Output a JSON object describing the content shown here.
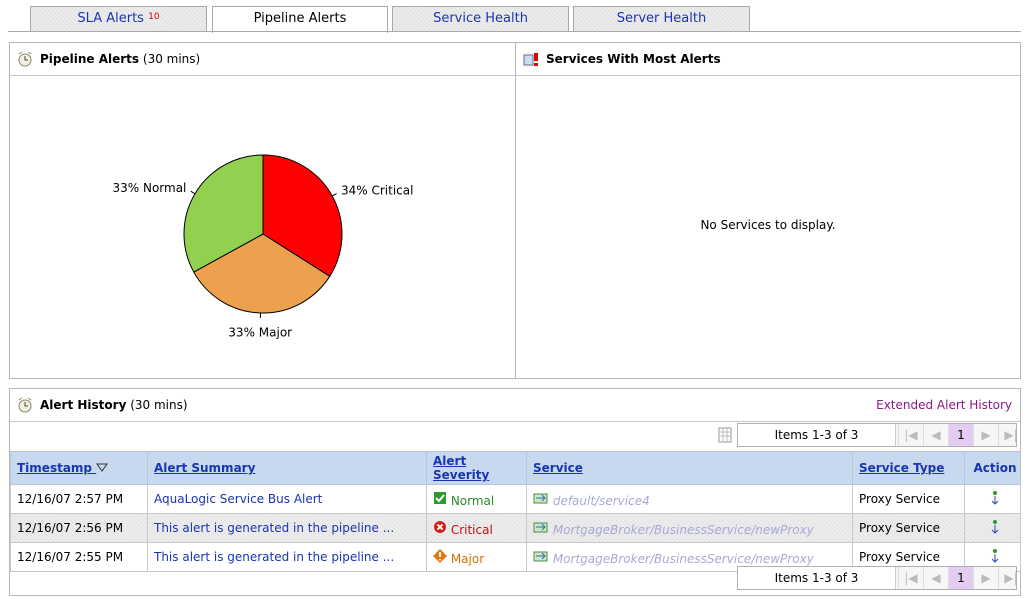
{
  "tabs": [
    {
      "label": "SLA Alerts",
      "badge": "10"
    },
    {
      "label": "Pipeline Alerts"
    },
    {
      "label": "Service Health"
    },
    {
      "label": "Server Health"
    }
  ],
  "pipeline_panel": {
    "title": "Pipeline Alerts",
    "period": "(30 mins)",
    "chart": {
      "type": "pie",
      "values": [
        34,
        33,
        33
      ],
      "value_labels": [
        "34% Critical",
        "33% Major",
        "33% Normal"
      ],
      "colors": [
        "#ff0000",
        "#eda04e",
        "#92d14f"
      ]
    }
  },
  "services_panel": {
    "title": "Services With Most Alerts",
    "message": "No Services to display."
  },
  "alert_history": {
    "title": "Alert History",
    "period": "(30 mins)",
    "link": "Extended Alert History",
    "pager": {
      "items": "Items 1-3 of 3",
      "page": "1"
    },
    "columns": [
      "Timestamp",
      "Alert Summary",
      "Alert Severity",
      "Service",
      "Service Type",
      "Action"
    ],
    "rows": [
      [
        "12/16/07 2:57 PM",
        "AquaLogic Service Bus Alert",
        "Normal",
        "default/service4",
        "Proxy Service"
      ],
      [
        "12/16/07 2:56 PM",
        "This alert is generated in the pipeline ...",
        "Critical",
        "MortgageBroker/BusinessService/newProxy",
        "Proxy Service"
      ],
      [
        "12/16/07 2:55 PM",
        "This alert is generated in the pipeline ...",
        "Major",
        "MortgageBroker/BusinessService/newProxy",
        "Proxy Service"
      ]
    ]
  }
}
